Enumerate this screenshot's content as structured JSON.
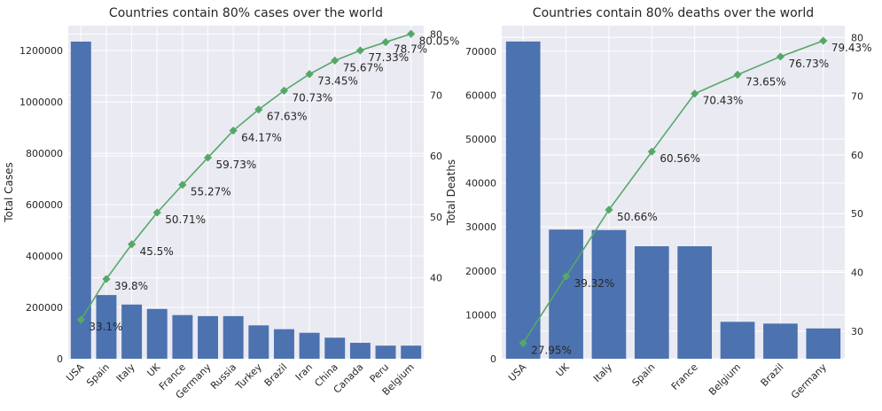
{
  "chart_data": [
    {
      "type": "bar",
      "title": "Countries contain 80% cases over the world",
      "ylabel": "Total Cases",
      "y2label": "",
      "categories": [
        "USA",
        "Spain",
        "Italy",
        "UK",
        "France",
        "Germany",
        "Russia",
        "Turkey",
        "Brazil",
        "Iran",
        "China",
        "Canada",
        "Peru",
        "Belgium"
      ],
      "series": [
        {
          "values": [
            1235000,
            248000,
            211000,
            194000,
            170000,
            166000,
            166000,
            130000,
            115000,
            101000,
            82000,
            62000,
            51000,
            51000
          ]
        },
        {
          "values": [
            33.1,
            39.8,
            45.5,
            50.71,
            55.27,
            59.73,
            64.17,
            67.63,
            70.73,
            73.45,
            75.67,
            77.33,
            78.7,
            80.05
          ]
        }
      ],
      "point_labels": [
        "33.1%",
        "39.8%",
        "45.5%",
        "50.71%",
        "55.27%",
        "59.73%",
        "64.17%",
        "67.63%",
        "70.73%",
        "73.45%",
        "75.67%",
        "77.33%",
        "78.7%",
        "80.05%"
      ],
      "yticks": [
        "0",
        "200000",
        "400000",
        "600000",
        "800000",
        "1000000",
        "1200000"
      ],
      "y2ticks": [
        "40",
        "50",
        "60",
        "70",
        "80"
      ],
      "ylim": [
        0,
        1297000
      ],
      "y2lim": [
        26.7,
        81.4
      ],
      "grid": true
    },
    {
      "type": "bar",
      "title": "Countries contain 80% deaths over the world",
      "ylabel": "Total Deaths",
      "y2label": "",
      "categories": [
        "USA",
        "UK",
        "Italy",
        "Spain",
        "France",
        "Belgium",
        "Brazil",
        "Germany"
      ],
      "series": [
        {
          "values": [
            72200,
            29400,
            29300,
            25600,
            25600,
            8400,
            8000,
            6900
          ]
        },
        {
          "values": [
            27.95,
            39.32,
            50.66,
            60.56,
            70.43,
            73.65,
            76.73,
            79.43
          ]
        }
      ],
      "point_labels": [
        "27.95%",
        "39.32%",
        "50.66%",
        "60.56%",
        "70.43%",
        "73.65%",
        "76.73%",
        "79.43%"
      ],
      "yticks": [
        "0",
        "10000",
        "20000",
        "30000",
        "40000",
        "50000",
        "60000",
        "70000"
      ],
      "y2ticks": [
        "30",
        "40",
        "50",
        "60",
        "70",
        "80"
      ],
      "ylim": [
        0,
        75800
      ],
      "y2lim": [
        25.3,
        82.0
      ],
      "grid": true
    }
  ],
  "colors": {
    "bar": "#4c72b0",
    "line": "#55a868",
    "background": "#eaeaf2",
    "grid": "#ffffff"
  }
}
